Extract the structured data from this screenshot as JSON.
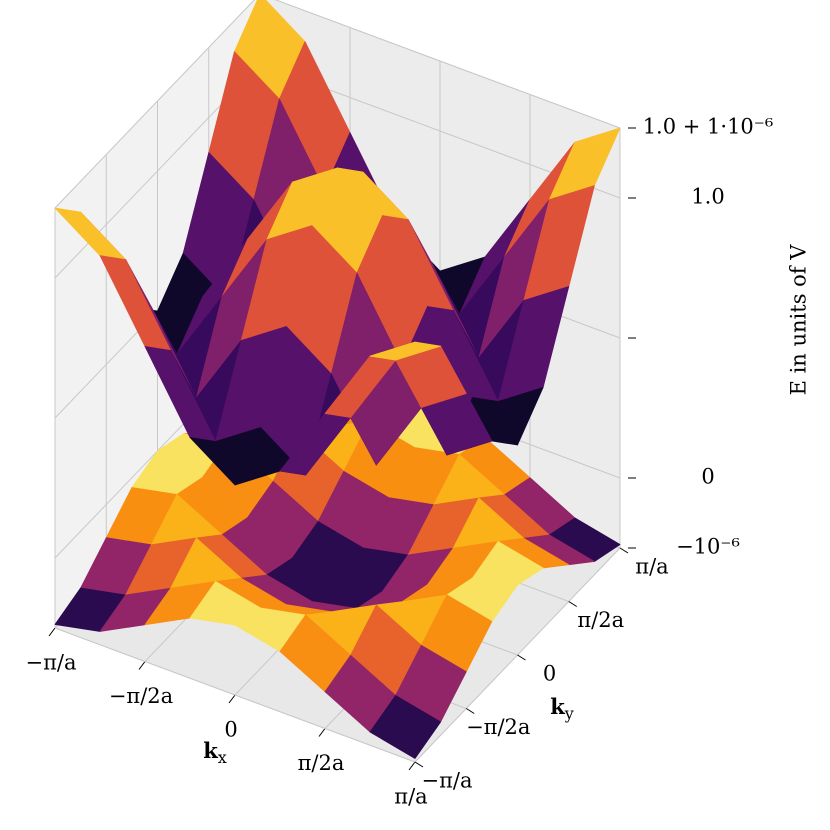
{
  "chart_data": {
    "type": "surface3d",
    "colormap": "inferno",
    "x_label": {
      "base": "k",
      "sub": "x"
    },
    "y_label": {
      "base": "k",
      "sub": "y"
    },
    "z_label": "E in units of V",
    "x": [
      -3.1416,
      -2.3562,
      -1.5708,
      -0.7854,
      0,
      0.7854,
      1.5708,
      2.3562,
      3.1416
    ],
    "y": [
      -3.1416,
      -2.3562,
      -1.5708,
      -0.7854,
      0,
      0.7854,
      1.5708,
      2.3562,
      3.1416
    ],
    "surfaces": [
      {
        "z": [
          [
            -9.5e-07,
            -8.11e-07,
            -4.75e-07,
            -1.39e-07,
            0,
            -1.39e-07,
            -4.75e-07,
            -8.11e-07,
            -9.5e-07
          ],
          [
            -8.11e-07,
            -6.72e-07,
            -3.36e-07,
            0,
            -1.39e-07,
            0,
            -3.36e-07,
            -6.72e-07,
            -8.11e-07
          ],
          [
            -4.75e-07,
            -3.36e-07,
            0,
            -3.36e-07,
            -4.75e-07,
            -3.36e-07,
            0,
            -3.36e-07,
            -4.75e-07
          ],
          [
            -1.39e-07,
            0,
            -3.36e-07,
            -6.72e-07,
            -8.11e-07,
            -6.72e-07,
            -3.36e-07,
            0,
            -1.39e-07
          ],
          [
            0,
            -1.39e-07,
            -4.75e-07,
            -8.11e-07,
            -9.5e-07,
            -8.11e-07,
            -4.75e-07,
            -1.39e-07,
            0
          ],
          [
            -1.39e-07,
            0,
            -3.36e-07,
            -6.72e-07,
            -8.11e-07,
            -6.72e-07,
            -3.36e-07,
            0,
            -1.39e-07
          ],
          [
            -4.75e-07,
            -3.36e-07,
            0,
            -3.36e-07,
            -4.75e-07,
            -3.36e-07,
            0,
            -3.36e-07,
            -4.75e-07
          ],
          [
            -8.11e-07,
            -6.72e-07,
            -3.36e-07,
            0,
            -1.39e-07,
            0,
            -3.36e-07,
            -6.72e-07,
            -8.11e-07
          ],
          [
            -9.5e-07,
            -8.11e-07,
            -4.75e-07,
            -1.39e-07,
            0,
            -1.39e-07,
            -4.75e-07,
            -8.11e-07,
            -9.5e-07
          ]
        ]
      },
      {
        "z": [
          [
            1.000001,
            1.00000056,
            0.9999995,
            0.99999844,
            0.999998,
            0.99999844,
            0.9999995,
            1.00000056,
            1.000001
          ],
          [
            1.00000056,
            1.00000012,
            0.99999906,
            0.999998,
            0.99999844,
            0.999998,
            0.99999906,
            1.00000012,
            1.00000056
          ],
          [
            0.9999995,
            0.99999906,
            0.999998,
            0.99999906,
            0.9999995,
            0.99999906,
            0.999998,
            0.99999906,
            0.9999995
          ],
          [
            0.99999844,
            0.999998,
            0.99999906,
            1.00000012,
            1.00000056,
            1.00000012,
            0.99999906,
            0.999998,
            0.99999844
          ],
          [
            0.999998,
            0.99999844,
            0.9999995,
            1.00000056,
            1.000001,
            1.00000056,
            0.9999995,
            0.99999844,
            0.999998
          ],
          [
            0.99999844,
            0.999998,
            0.99999906,
            1.00000012,
            1.00000056,
            1.00000012,
            0.99999906,
            0.999998,
            0.99999844
          ],
          [
            0.9999995,
            0.99999906,
            0.999998,
            0.99999906,
            0.9999995,
            0.99999906,
            0.999998,
            0.99999906,
            0.9999995
          ],
          [
            1.00000056,
            1.00000012,
            0.99999906,
            0.999998,
            0.99999844,
            0.999998,
            0.99999906,
            1.00000012,
            1.00000056
          ],
          [
            1.000001,
            1.00000056,
            0.9999995,
            0.99999844,
            0.999998,
            0.99999844,
            0.9999995,
            1.00000056,
            1.000001
          ]
        ]
      }
    ],
    "xlim": [
      -3.1416,
      3.1416
    ],
    "ylim": [
      -3.1416,
      3.1416
    ],
    "zlim": [
      -1e-06,
      1.000001
    ],
    "xticks": [
      {
        "value": -3.1416,
        "label": "−π/a"
      },
      {
        "value": -1.5708,
        "label": "−π/2a"
      },
      0,
      {
        "value": 1.5708,
        "label": "π/2a"
      },
      {
        "value": 3.1416,
        "label": "π/a"
      }
    ],
    "yticks": [
      {
        "value": -3.1416,
        "label": "−π/a"
      },
      {
        "value": -1.5708,
        "label": "−π/2a"
      },
      0,
      {
        "value": 1.5708,
        "label": "π/2a"
      },
      {
        "value": 3.1416,
        "label": "π/a"
      }
    ],
    "zticks": [
      {
        "value": -1e-06,
        "label": "−10⁻⁶"
      },
      0,
      {
        "value": 0.999998,
        "label": null
      },
      {
        "value": 1,
        "label": "1.0"
      },
      {
        "value": 1.000001,
        "label": "1.0 + 1·10⁻⁶"
      }
    ],
    "grid": true
  }
}
